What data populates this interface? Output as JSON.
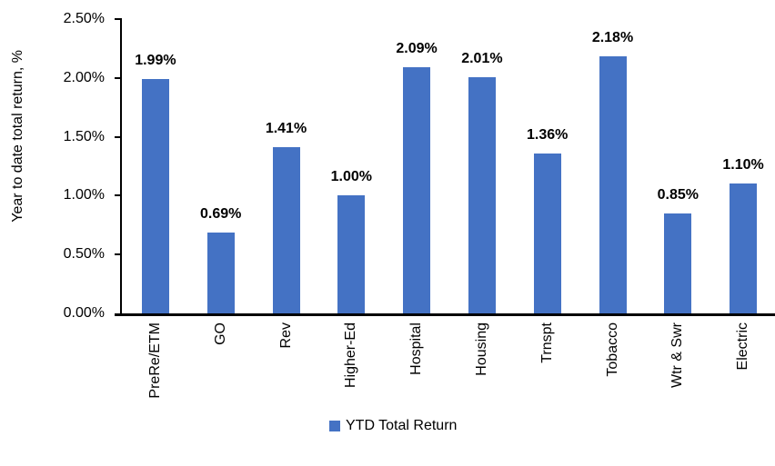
{
  "chart_data": {
    "type": "bar",
    "title": "",
    "ylabel": "Year to date total return, %",
    "xlabel": "",
    "categories": [
      "PreRe/ETM",
      "GO",
      "Rev",
      "Higher-Ed",
      "Hospital",
      "Housing",
      "Trnspt",
      "Tobacco",
      "Wtr & Swr",
      "Electric"
    ],
    "series": [
      {
        "name": "YTD Total Return",
        "values": [
          1.99,
          0.69,
          1.41,
          1.0,
          2.09,
          2.01,
          1.36,
          2.18,
          0.85,
          1.1
        ]
      }
    ],
    "value_labels": [
      "1.99%",
      "0.69%",
      "1.41%",
      "1.00%",
      "2.09%",
      "2.01%",
      "1.36%",
      "2.18%",
      "0.85%",
      "1.10%"
    ],
    "y_axis": {
      "min": 0,
      "max": 2.5,
      "tick_step": 0.5,
      "tick_labels": [
        "0.00%",
        "0.50%",
        "1.00%",
        "1.50%",
        "2.00%",
        "2.50%"
      ]
    },
    "legend": {
      "label": "YTD Total Return",
      "position": "bottom-center"
    },
    "grid": false,
    "colors": {
      "bar": "#4472C4",
      "axis": "#000000",
      "text": "#000000",
      "background": "#FFFFFF"
    }
  }
}
